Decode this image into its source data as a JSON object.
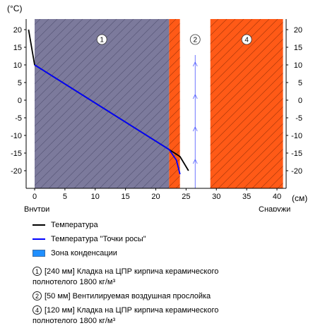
{
  "axis": {
    "unit_y": "(°C)",
    "unit_x": "(см)",
    "y_ticks": [
      20,
      15,
      10,
      5,
      0,
      -5,
      -10,
      -15,
      -20
    ],
    "x_ticks": [
      0,
      5,
      10,
      15,
      20,
      25,
      30,
      35,
      40
    ],
    "inside_label": "Внутри",
    "outside_label": "Снаружи"
  },
  "chart_data": {
    "type": "line",
    "xlim": [
      -1,
      41
    ],
    "ylim": [
      -25,
      22
    ],
    "layers": [
      {
        "label": "1",
        "x_start": 0,
        "x_end": 22.2,
        "fill": "#7c7a9c"
      },
      {
        "label": "",
        "x_start": 22.2,
        "x_end": 24,
        "fill": "#ff5a17"
      },
      {
        "label": "2",
        "x_start": 24,
        "x_end": 29,
        "fill": "#ffffff"
      },
      {
        "label": "4",
        "x_start": 29,
        "x_end": 41,
        "fill": "#ff5a17"
      }
    ],
    "series": [
      {
        "name": "Температура",
        "color": "#000000",
        "x": [
          -1,
          0,
          22.2,
          24,
          25.4
        ],
        "y": [
          20,
          10,
          -14,
          -16,
          -20
        ]
      },
      {
        "name": "Температура \"Точки росы\"",
        "color": "#0000ff",
        "x": [
          0,
          22.2,
          23.4,
          24
        ],
        "y": [
          10,
          -14,
          -17,
          -21
        ]
      }
    ],
    "air_flow_arrows_x": 26.5
  },
  "legend": {
    "temperature": "Температура",
    "dew_point": "Температура \"Точки росы\"",
    "condensation": "Зона конденсации"
  },
  "layers_info": [
    {
      "num": "1",
      "line1": "[240 мм] Кладка на ЦПР кирпича керамического",
      "line2": "полнотелого 1800 кг/м³"
    },
    {
      "num": "2",
      "line1": "[50 мм] Вентилируемая воздушная прослойка",
      "line2": ""
    },
    {
      "num": "4",
      "line1": "[120 мм] Кладка на ЦПР кирпича керамического",
      "line2": "полнотелого 1800 кг/м³"
    }
  ],
  "colors": {
    "accent_orange": "#ff5a17",
    "brick_purple": "#7c7a9c",
    "condensation_blue": "#1f8fff",
    "axis": "#000000"
  }
}
